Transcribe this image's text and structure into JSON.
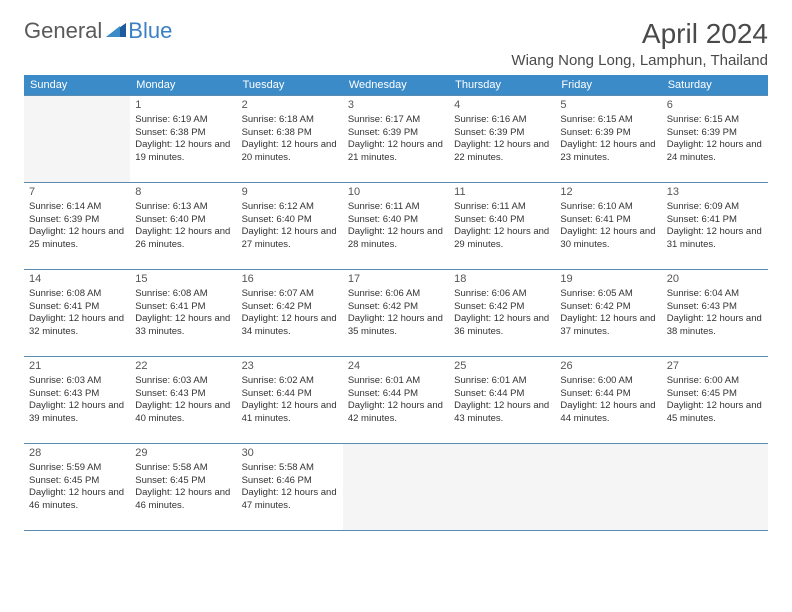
{
  "logo": {
    "text1": "General",
    "text2": "Blue"
  },
  "title": "April 2024",
  "location": "Wiang Nong Long, Lamphun, Thailand",
  "colors": {
    "header_bar": "#3b8bc9",
    "header_text": "#ffffff",
    "row_border": "#5a8bb0",
    "empty_cell": "#f5f5f5",
    "body_text": "#333333",
    "title_text": "#4a4a4a",
    "logo_gray": "#5a5a5a",
    "logo_blue": "#3b7fc4"
  },
  "weekdays": [
    "Sunday",
    "Monday",
    "Tuesday",
    "Wednesday",
    "Thursday",
    "Friday",
    "Saturday"
  ],
  "weeks": [
    [
      null,
      {
        "n": "1",
        "sr": "Sunrise: 6:19 AM",
        "ss": "Sunset: 6:38 PM",
        "dl": "Daylight: 12 hours and 19 minutes."
      },
      {
        "n": "2",
        "sr": "Sunrise: 6:18 AM",
        "ss": "Sunset: 6:38 PM",
        "dl": "Daylight: 12 hours and 20 minutes."
      },
      {
        "n": "3",
        "sr": "Sunrise: 6:17 AM",
        "ss": "Sunset: 6:39 PM",
        "dl": "Daylight: 12 hours and 21 minutes."
      },
      {
        "n": "4",
        "sr": "Sunrise: 6:16 AM",
        "ss": "Sunset: 6:39 PM",
        "dl": "Daylight: 12 hours and 22 minutes."
      },
      {
        "n": "5",
        "sr": "Sunrise: 6:15 AM",
        "ss": "Sunset: 6:39 PM",
        "dl": "Daylight: 12 hours and 23 minutes."
      },
      {
        "n": "6",
        "sr": "Sunrise: 6:15 AM",
        "ss": "Sunset: 6:39 PM",
        "dl": "Daylight: 12 hours and 24 minutes."
      }
    ],
    [
      {
        "n": "7",
        "sr": "Sunrise: 6:14 AM",
        "ss": "Sunset: 6:39 PM",
        "dl": "Daylight: 12 hours and 25 minutes."
      },
      {
        "n": "8",
        "sr": "Sunrise: 6:13 AM",
        "ss": "Sunset: 6:40 PM",
        "dl": "Daylight: 12 hours and 26 minutes."
      },
      {
        "n": "9",
        "sr": "Sunrise: 6:12 AM",
        "ss": "Sunset: 6:40 PM",
        "dl": "Daylight: 12 hours and 27 minutes."
      },
      {
        "n": "10",
        "sr": "Sunrise: 6:11 AM",
        "ss": "Sunset: 6:40 PM",
        "dl": "Daylight: 12 hours and 28 minutes."
      },
      {
        "n": "11",
        "sr": "Sunrise: 6:11 AM",
        "ss": "Sunset: 6:40 PM",
        "dl": "Daylight: 12 hours and 29 minutes."
      },
      {
        "n": "12",
        "sr": "Sunrise: 6:10 AM",
        "ss": "Sunset: 6:41 PM",
        "dl": "Daylight: 12 hours and 30 minutes."
      },
      {
        "n": "13",
        "sr": "Sunrise: 6:09 AM",
        "ss": "Sunset: 6:41 PM",
        "dl": "Daylight: 12 hours and 31 minutes."
      }
    ],
    [
      {
        "n": "14",
        "sr": "Sunrise: 6:08 AM",
        "ss": "Sunset: 6:41 PM",
        "dl": "Daylight: 12 hours and 32 minutes."
      },
      {
        "n": "15",
        "sr": "Sunrise: 6:08 AM",
        "ss": "Sunset: 6:41 PM",
        "dl": "Daylight: 12 hours and 33 minutes."
      },
      {
        "n": "16",
        "sr": "Sunrise: 6:07 AM",
        "ss": "Sunset: 6:42 PM",
        "dl": "Daylight: 12 hours and 34 minutes."
      },
      {
        "n": "17",
        "sr": "Sunrise: 6:06 AM",
        "ss": "Sunset: 6:42 PM",
        "dl": "Daylight: 12 hours and 35 minutes."
      },
      {
        "n": "18",
        "sr": "Sunrise: 6:06 AM",
        "ss": "Sunset: 6:42 PM",
        "dl": "Daylight: 12 hours and 36 minutes."
      },
      {
        "n": "19",
        "sr": "Sunrise: 6:05 AM",
        "ss": "Sunset: 6:42 PM",
        "dl": "Daylight: 12 hours and 37 minutes."
      },
      {
        "n": "20",
        "sr": "Sunrise: 6:04 AM",
        "ss": "Sunset: 6:43 PM",
        "dl": "Daylight: 12 hours and 38 minutes."
      }
    ],
    [
      {
        "n": "21",
        "sr": "Sunrise: 6:03 AM",
        "ss": "Sunset: 6:43 PM",
        "dl": "Daylight: 12 hours and 39 minutes."
      },
      {
        "n": "22",
        "sr": "Sunrise: 6:03 AM",
        "ss": "Sunset: 6:43 PM",
        "dl": "Daylight: 12 hours and 40 minutes."
      },
      {
        "n": "23",
        "sr": "Sunrise: 6:02 AM",
        "ss": "Sunset: 6:44 PM",
        "dl": "Daylight: 12 hours and 41 minutes."
      },
      {
        "n": "24",
        "sr": "Sunrise: 6:01 AM",
        "ss": "Sunset: 6:44 PM",
        "dl": "Daylight: 12 hours and 42 minutes."
      },
      {
        "n": "25",
        "sr": "Sunrise: 6:01 AM",
        "ss": "Sunset: 6:44 PM",
        "dl": "Daylight: 12 hours and 43 minutes."
      },
      {
        "n": "26",
        "sr": "Sunrise: 6:00 AM",
        "ss": "Sunset: 6:44 PM",
        "dl": "Daylight: 12 hours and 44 minutes."
      },
      {
        "n": "27",
        "sr": "Sunrise: 6:00 AM",
        "ss": "Sunset: 6:45 PM",
        "dl": "Daylight: 12 hours and 45 minutes."
      }
    ],
    [
      {
        "n": "28",
        "sr": "Sunrise: 5:59 AM",
        "ss": "Sunset: 6:45 PM",
        "dl": "Daylight: 12 hours and 46 minutes."
      },
      {
        "n": "29",
        "sr": "Sunrise: 5:58 AM",
        "ss": "Sunset: 6:45 PM",
        "dl": "Daylight: 12 hours and 46 minutes."
      },
      {
        "n": "30",
        "sr": "Sunrise: 5:58 AM",
        "ss": "Sunset: 6:46 PM",
        "dl": "Daylight: 12 hours and 47 minutes."
      },
      null,
      null,
      null,
      null
    ]
  ]
}
